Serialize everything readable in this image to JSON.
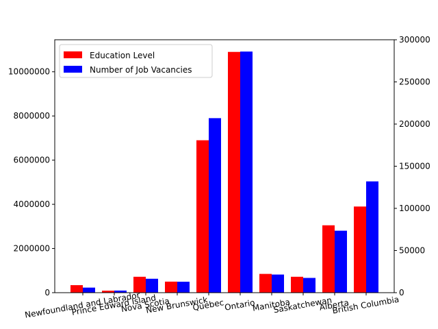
{
  "chart_data": {
    "type": "bar",
    "categories": [
      "Newfoundland and Labrador",
      "Prince Edward Island",
      "Nova Scotia",
      "New Brunswick",
      "Quebec",
      "Ontario",
      "Manitoba",
      "Saskatchewan",
      "Alberta",
      "British Columbia"
    ],
    "series": [
      {
        "name": "Education Level",
        "axis": "left",
        "color": "#ff0000",
        "values": [
          340000,
          90000,
          720000,
          500000,
          6900000,
          10900000,
          850000,
          720000,
          3050000,
          3900000
        ]
      },
      {
        "name": "Number of Job Vacancies",
        "axis": "right",
        "color": "#0000ff",
        "values": [
          6000,
          2500,
          16500,
          13000,
          207000,
          286000,
          21500,
          17500,
          73500,
          132000
        ]
      }
    ],
    "ylim_left": [
      0,
      11450000
    ],
    "yticks_left": [
      0,
      2000000,
      4000000,
      6000000,
      8000000,
      10000000
    ],
    "ylim_right": [
      0,
      300000
    ],
    "yticks_right": [
      0,
      50000,
      100000,
      150000,
      200000,
      250000,
      300000
    ],
    "xtick_rotation": -10,
    "legend": "top-left",
    "grid": false,
    "title": "",
    "xlabel": "",
    "ylabel": ""
  }
}
